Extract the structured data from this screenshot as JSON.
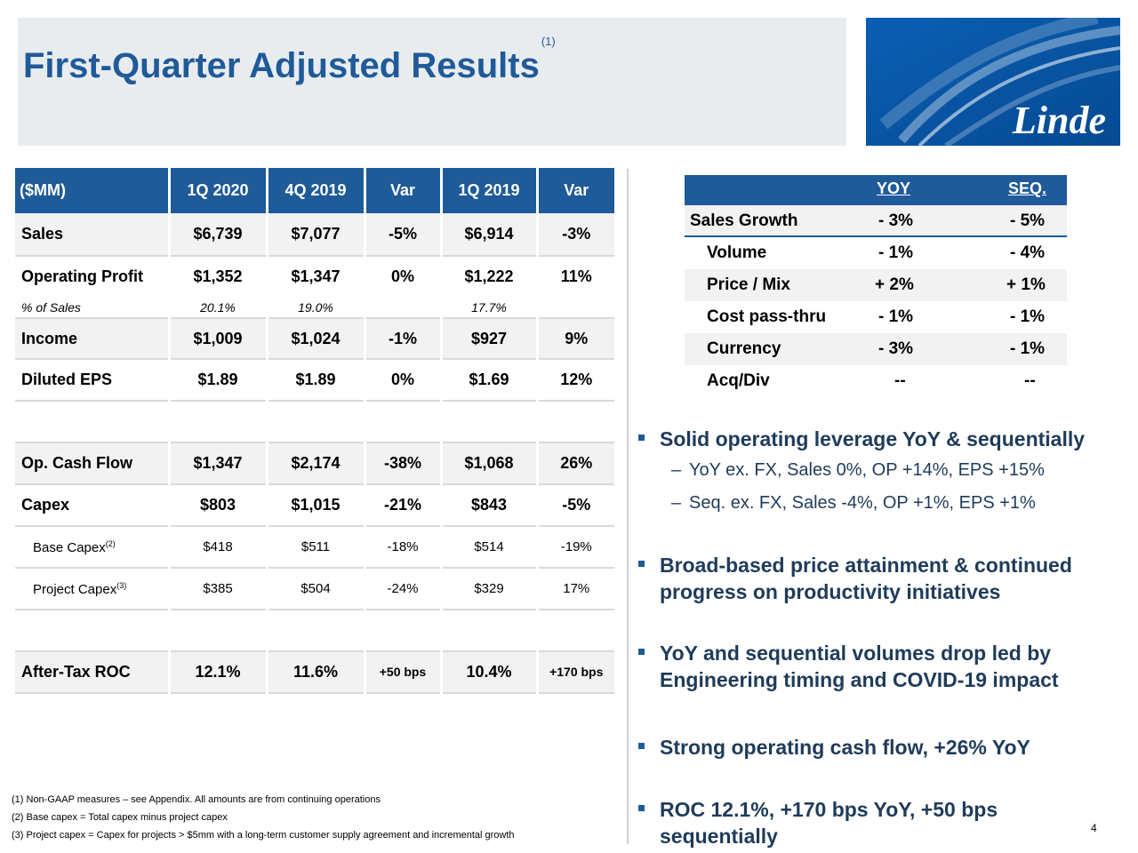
{
  "title": {
    "text": "First-Quarter Adjusted Results",
    "sup": "(1)"
  },
  "logo": {
    "wordmark": "Linde"
  },
  "main_table": {
    "headers": [
      "($MM)",
      "1Q 2020",
      "4Q 2019",
      "Var",
      "1Q 2019",
      "Var"
    ],
    "rows": [
      {
        "label": "Sales",
        "cells": [
          "$6,739",
          "$7,077",
          "-5%",
          "$6,914",
          "-3%"
        ]
      },
      {
        "label": "Operating Profit",
        "cells": [
          "$1,352",
          "$1,347",
          "0%",
          "$1,222",
          "11%"
        ]
      },
      {
        "label": "% of Sales",
        "cells": [
          "20.1%",
          "19.0%",
          "",
          "17.7%",
          ""
        ]
      },
      {
        "label": "Income",
        "cells": [
          "$1,009",
          "$1,024",
          "-1%",
          "$927",
          "9%"
        ]
      },
      {
        "label": "Diluted EPS",
        "cells": [
          "$1.89",
          "$1.89",
          "0%",
          "$1.69",
          "12%"
        ]
      },
      {
        "label": "Op. Cash Flow",
        "cells": [
          "$1,347",
          "$2,174",
          "-38%",
          "$1,068",
          "26%"
        ]
      },
      {
        "label": "Capex",
        "cells": [
          "$803",
          "$1,015",
          "-21%",
          "$843",
          "-5%"
        ]
      },
      {
        "label": "Base Capex",
        "sup": "(2)",
        "cells": [
          "$418",
          "$511",
          "-18%",
          "$514",
          "-19%"
        ]
      },
      {
        "label": "Project Capex",
        "sup": "(3)",
        "cells": [
          "$385",
          "$504",
          "-24%",
          "$329",
          "17%"
        ]
      },
      {
        "label": "After-Tax ROC",
        "cells": [
          "12.1%",
          "11.6%",
          "+50 bps",
          "10.4%",
          "+170 bps"
        ]
      }
    ]
  },
  "growth_table": {
    "headers": {
      "yoy": "YOY",
      "seq": "SEQ."
    },
    "rows": [
      {
        "label": "Sales Growth",
        "yoy": "- 3%",
        "seq": "- 5%"
      },
      {
        "label": "Volume",
        "yoy": "- 1%",
        "seq": "- 4%"
      },
      {
        "label": "Price / Mix",
        "yoy": "+ 2%",
        "seq": "+ 1%"
      },
      {
        "label": "Cost pass-thru",
        "yoy": "- 1%",
        "seq": "- 1%"
      },
      {
        "label": "Currency",
        "yoy": "- 3%",
        "seq": "- 1%"
      },
      {
        "label": "Acq/Div",
        "yoy": "--",
        "seq": "--"
      }
    ]
  },
  "bullets": [
    {
      "lines": [
        "Solid operating leverage YoY & sequentially"
      ]
    },
    {
      "lines": [
        "Broad-based price attainment & continued",
        "progress on productivity initiatives"
      ]
    },
    {
      "lines": [
        "YoY and sequential volumes drop led by",
        "Engineering timing and COVID-19 impact"
      ]
    },
    {
      "lines": [
        "Strong operating cash flow, +26% YoY"
      ]
    },
    {
      "lines": [
        "ROC 12.1%, +170 bps YoY, +50 bps",
        "sequentially"
      ]
    }
  ],
  "sub_bullets": [
    "YoY ex. FX, Sales 0%, OP +14%, EPS +15%",
    "Seq. ex. FX, Sales -4%, OP +1%, EPS +1%"
  ],
  "footnotes": [
    "(1) Non-GAAP measures – see Appendix. All amounts are from continuing operations",
    "(2) Base capex = Total capex minus project capex",
    "(3) Project capex = Capex for projects > $5mm with a long-term customer supply agreement and incremental growth"
  ],
  "page_number": "4",
  "colors": {
    "brand_blue": "#1f5a99",
    "logo_blue": "#0b56a4",
    "row_gray": "#f2f2f2"
  }
}
